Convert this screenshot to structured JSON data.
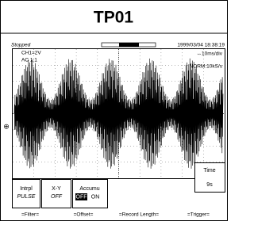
{
  "header": {
    "title": "TP01"
  },
  "status": {
    "state": "Stopped",
    "datetime": "1999/03/04 18:38:19"
  },
  "channel": {
    "scale": "CH1=2V",
    "coupling": "AC 1:1"
  },
  "timebase": {
    "scale": "↔10ms/div",
    "sampling": "NORM:10kS/s"
  },
  "menu": [
    {
      "label": "Intrpl",
      "value": "PULSE"
    },
    {
      "label": "X-Y",
      "value": "OFF"
    },
    {
      "label": "Accumu",
      "options": [
        "OFF",
        "ON"
      ]
    },
    {
      "label": "Time",
      "value": "9s"
    }
  ],
  "softkeys": [
    "=Filter=",
    "=Offset=",
    "=Record Length=",
    "=Trigger="
  ]
}
